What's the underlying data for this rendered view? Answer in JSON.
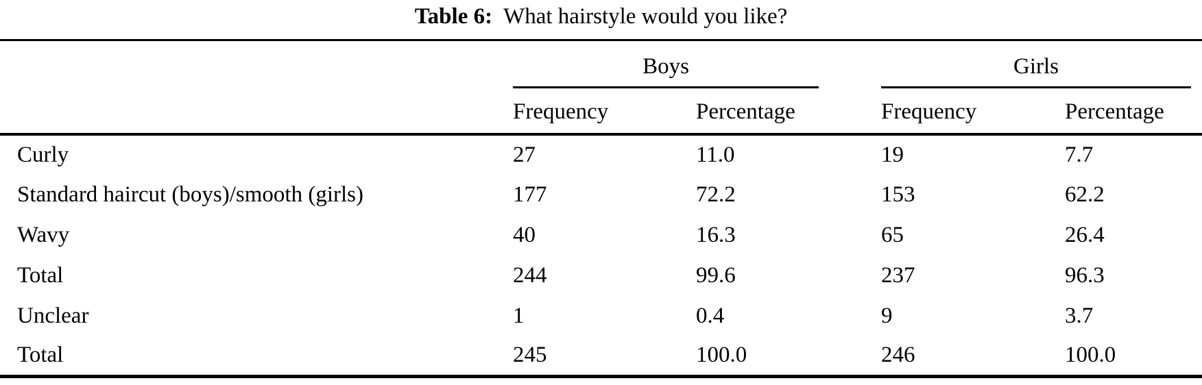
{
  "caption": {
    "label": "Table 6:",
    "text": "What hairstyle would you like?"
  },
  "table": {
    "groups": [
      "Boys",
      "Girls"
    ],
    "columns": [
      "Frequency",
      "Percentage",
      "Frequency",
      "Percentage"
    ],
    "rows": [
      {
        "label": "Curly",
        "cells": [
          "27",
          "11.0",
          "19",
          "7.7"
        ]
      },
      {
        "label": "Standard haircut (boys)/smooth (girls)",
        "cells": [
          "177",
          "72.2",
          "153",
          "62.2"
        ]
      },
      {
        "label": "Wavy",
        "cells": [
          "40",
          "16.3",
          "65",
          "26.4"
        ]
      },
      {
        "label": "Total",
        "cells": [
          "244",
          "99.6",
          "237",
          "96.3"
        ]
      },
      {
        "label": "Unclear",
        "cells": [
          "1",
          "0.4",
          "9",
          "3.7"
        ]
      },
      {
        "label": "Total",
        "cells": [
          "245",
          "100.0",
          "246",
          "100.0"
        ]
      }
    ]
  },
  "chart_data": {
    "type": "table",
    "title": "Table 6: What hairstyle would you like?",
    "column_groups": [
      "Boys",
      "Girls"
    ],
    "columns": [
      "Boys Frequency",
      "Boys Percentage",
      "Girls Frequency",
      "Girls Percentage"
    ],
    "categories": [
      "Curly",
      "Standard haircut (boys)/smooth (girls)",
      "Wavy",
      "Total",
      "Unclear",
      "Total"
    ],
    "series": [
      {
        "name": "Boys Frequency",
        "values": [
          27,
          177,
          40,
          244,
          1,
          245
        ]
      },
      {
        "name": "Boys Percentage",
        "values": [
          11.0,
          72.2,
          16.3,
          99.6,
          0.4,
          100.0
        ]
      },
      {
        "name": "Girls Frequency",
        "values": [
          19,
          153,
          65,
          237,
          9,
          246
        ]
      },
      {
        "name": "Girls Percentage",
        "values": [
          7.7,
          62.2,
          26.4,
          96.3,
          3.7,
          100.0
        ]
      }
    ]
  }
}
